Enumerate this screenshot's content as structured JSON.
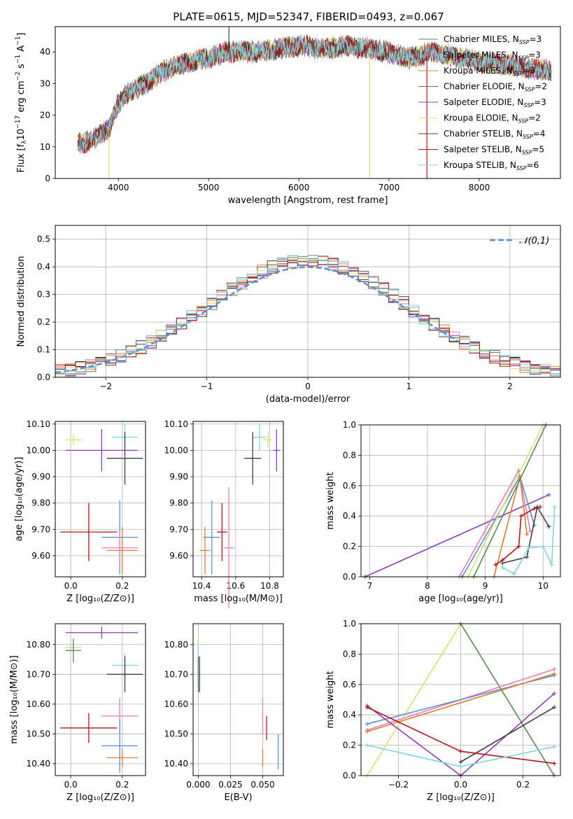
{
  "figure": {
    "title": "PLATE=0615, MJD=52347, FIBERID=0493, z=0.067"
  },
  "legend_spectrum": [
    {
      "label": "Chabrier MILES, N_{SSP}=3",
      "prefix": "Chabrier MILES, N",
      "sub": "SSP",
      "suffix": "=3",
      "color": "#5b8a5b"
    },
    {
      "label": "Salpeter MILES, N_{SSP}=3",
      "prefix": "Salpeter MILES, N",
      "sub": "SSP",
      "suffix": "=3",
      "color": "#e87ab8"
    },
    {
      "label": "Kroupa MILES, N_{SSP}=3",
      "prefix": "Kroupa MILES, N",
      "sub": "SSP",
      "suffix": "=3",
      "color": "#e07b28"
    },
    {
      "label": "Chabrier ELODIE, N_{SSP}=2",
      "prefix": "Chabrier ELODIE, N",
      "sub": "SSP",
      "suffix": "=2",
      "color": "#6a6a6a"
    },
    {
      "label": "Salpeter ELODIE, N_{SSP}=3",
      "prefix": "Salpeter ELODIE, N",
      "sub": "SSP",
      "suffix": "=3",
      "color": "#8e3bb5"
    },
    {
      "label": "Kroupa ELODIE, N_{SSP}=2",
      "prefix": "Kroupa ELODIE, N",
      "sub": "SSP",
      "suffix": "=2",
      "color": "#d8e36a"
    },
    {
      "label": "Chabrier STELIB, N_{SSP}=4",
      "prefix": "Chabrier STELIB, N",
      "sub": "SSP",
      "suffix": "=4",
      "color": "#404040"
    },
    {
      "label": "Salpeter STELIB, N_{SSP}=5",
      "prefix": "Salpeter STELIB, N",
      "sub": "SSP",
      "suffix": "=5",
      "color": "#b5121b"
    },
    {
      "label": "Kroupa STELIB, N_{SSP}=6",
      "prefix": "Kroupa STELIB, N",
      "sub": "SSP",
      "suffix": "=6",
      "color": "#7ed6dc"
    }
  ],
  "legend_residual": {
    "label": "𝒩(0,1)",
    "color": "#5b8fd6"
  },
  "chart_data": [
    {
      "id": "spectrum",
      "type": "line",
      "xlabel": "wavelength [Angstrom, rest frame]",
      "ylabel": "Flux [f_λ 10^{-17} erg cm^{-2} s^{-1} A^{-1}]",
      "xlim": [
        3300,
        8900
      ],
      "ylim": [
        0,
        48
      ],
      "xticks": [
        4000,
        5000,
        6000,
        7000,
        8000
      ],
      "yticks": [
        0,
        10,
        20,
        30,
        40
      ],
      "continuum": {
        "x": [
          3550,
          3700,
          3900,
          4000,
          4100,
          4300,
          4500,
          4800,
          5000,
          5200,
          5500,
          5800,
          6000,
          6300,
          6500,
          6800,
          7000,
          7200,
          7500,
          7800,
          8000,
          8300,
          8500,
          8800
        ],
        "y": [
          11,
          12,
          16,
          24,
          27,
          30,
          34,
          37,
          38,
          40,
          40,
          41,
          42,
          41,
          42,
          41,
          40,
          38,
          40,
          38,
          37,
          36,
          35,
          34
        ]
      },
      "spikes": [
        {
          "x": 5225,
          "y": 48,
          "color": "#404040"
        },
        {
          "x": 6785,
          "y": 0,
          "color": "#d8e36a"
        },
        {
          "x": 7420,
          "y": 0,
          "color": "#b5121b"
        },
        {
          "x": 3895,
          "y": 0,
          "color": "#d8e36a"
        }
      ]
    },
    {
      "id": "residuals",
      "type": "step",
      "xlabel": "(data-model)/error",
      "ylabel": "Normed distribution",
      "xlim": [
        -2.5,
        2.5
      ],
      "ylim": [
        0,
        0.55
      ],
      "xticks": [
        -2,
        -1,
        0,
        1,
        2
      ],
      "xticklabels": [
        "−2",
        "−1",
        "0",
        "1",
        "2"
      ],
      "yticks": [
        0,
        0.1,
        0.2,
        0.3,
        0.4,
        0.5
      ],
      "xticklabel_fmt": "int",
      "bin_width": 0.1,
      "peak": 0.42
    },
    {
      "id": "age-vs-Z",
      "type": "errorbar",
      "xlabel": "Z [log10(Z/Z⊙)]",
      "ylabel": "age [log10(age/yr)]",
      "xlim": [
        -0.06,
        0.29
      ],
      "ylim": [
        9.52,
        10.11
      ],
      "xticks": [
        0.0,
        0.2
      ],
      "xticklabels": [
        "0.0",
        "0.2"
      ],
      "yticks": [
        9.6,
        9.7,
        9.8,
        9.9,
        10.0,
        10.1
      ],
      "points": [
        {
          "x": 0.01,
          "y": 10.04,
          "xerr": 0.03,
          "yerr": 0.02,
          "color": "#d8e36a"
        },
        {
          "x": 0.12,
          "y": 10.0,
          "xerr": 0.14,
          "yerr": 0.08,
          "color": "#8e3bb5"
        },
        {
          "x": 0.21,
          "y": 10.05,
          "xerr": 0.05,
          "yerr": 0.05,
          "color": "#7ed6dc"
        },
        {
          "x": 0.21,
          "y": 9.97,
          "xerr": 0.07,
          "yerr": 0.1,
          "color": "#404040"
        },
        {
          "x": 0.07,
          "y": 9.69,
          "xerr": 0.11,
          "yerr": 0.11,
          "color": "#b5121b"
        },
        {
          "x": 0.19,
          "y": 9.67,
          "xerr": 0.07,
          "yerr": 0.14,
          "color": "#5b8fd6"
        },
        {
          "x": 0.19,
          "y": 9.63,
          "xerr": 0.07,
          "yerr": 0.06,
          "color": "#e87ab8"
        },
        {
          "x": 0.2,
          "y": 9.62,
          "xerr": 0.06,
          "yerr": 0.09,
          "color": "#e07b28"
        }
      ]
    },
    {
      "id": "age-vs-mass",
      "type": "errorbar",
      "xlabel": "mass [log10(M/M⊙)]",
      "ylabel": "",
      "xlim": [
        10.35,
        10.88
      ],
      "ylim": [
        9.52,
        10.11
      ],
      "xticks": [
        10.4,
        10.6,
        10.8
      ],
      "xticklabels": [
        "10.4",
        "10.6",
        "10.8"
      ],
      "yticks": [
        9.6,
        9.7,
        9.8,
        9.9,
        10.0,
        10.1
      ],
      "points": [
        {
          "x": 10.79,
          "y": 10.04,
          "xerr": 0.03,
          "yerr": 0.03,
          "color": "#d8e36a"
        },
        {
          "x": 10.84,
          "y": 10.0,
          "xerr": 0.02,
          "yerr": 0.08,
          "color": "#8e3bb5"
        },
        {
          "x": 10.74,
          "y": 10.05,
          "xerr": 0.04,
          "yerr": 0.05,
          "color": "#7ed6dc"
        },
        {
          "x": 10.7,
          "y": 9.97,
          "xerr": 0.05,
          "yerr": 0.1,
          "color": "#404040"
        },
        {
          "x": 10.52,
          "y": 9.69,
          "xerr": 0.03,
          "yerr": 0.11,
          "color": "#b5121b"
        },
        {
          "x": 10.46,
          "y": 9.67,
          "xerr": 0.05,
          "yerr": 0.14,
          "color": "#5b8fd6"
        },
        {
          "x": 10.56,
          "y": 9.63,
          "xerr": 0.03,
          "yerr": 0.23,
          "color": "#e87ab8"
        },
        {
          "x": 10.42,
          "y": 9.62,
          "xerr": 0.03,
          "yerr": 0.09,
          "color": "#e07b28"
        }
      ]
    },
    {
      "id": "massweight-vs-age",
      "type": "line",
      "xlabel": "age [log10(age/yr)]",
      "ylabel": "mass weight",
      "xlim": [
        6.85,
        10.3
      ],
      "ylim": [
        0,
        1.0
      ],
      "xticks": [
        7,
        8,
        9,
        10
      ],
      "xticklabels": [
        "7",
        "8",
        "9",
        "10"
      ],
      "yticks": [
        0.0,
        0.2,
        0.4,
        0.6,
        0.8,
        1.0
      ],
      "series": [
        {
          "color": "#8e3bb5",
          "x": [
            6.92,
            10.1
          ],
          "y": [
            0.0,
            0.54
          ]
        },
        {
          "color": "#e87ab8",
          "x": [
            8.55,
            9.58,
            9.78
          ],
          "y": [
            0.0,
            0.7,
            0.3
          ]
        },
        {
          "color": "#5b8fd6",
          "x": [
            8.6,
            9.6,
            9.85
          ],
          "y": [
            0.0,
            0.66,
            0.34
          ]
        },
        {
          "color": "#e07b28",
          "x": [
            9.15,
            9.6,
            9.72
          ],
          "y": [
            0.0,
            0.66,
            0.28
          ]
        },
        {
          "color": "#d8e36a",
          "x": [
            8.7,
            10.0
          ],
          "y": [
            0.0,
            1.0
          ]
        },
        {
          "color": "#5b8a5b",
          "x": [
            8.8,
            10.05
          ],
          "y": [
            0.0,
            1.0
          ]
        },
        {
          "color": "#b5121b",
          "x": [
            9.18,
            9.3,
            9.58,
            9.62,
            9.85,
            9.95
          ],
          "y": [
            0.08,
            0.11,
            0.2,
            0.4,
            0.45,
            0.46
          ]
        },
        {
          "color": "#404040",
          "x": [
            9.3,
            9.72,
            9.9,
            10.1
          ],
          "y": [
            0.09,
            0.13,
            0.46,
            0.33
          ]
        },
        {
          "color": "#7ed6dc",
          "x": [
            9.3,
            9.5,
            9.75,
            10.0,
            10.15,
            10.2
          ],
          "y": [
            0.06,
            0.02,
            0.19,
            0.2,
            0.08,
            0.46
          ]
        }
      ]
    },
    {
      "id": "mass-vs-Z",
      "type": "errorbar",
      "xlabel": "Z [log10(Z/Z⊙)]",
      "ylabel": "mass [log10(M/M⊙)]",
      "xlim": [
        -0.06,
        0.29
      ],
      "ylim": [
        10.36,
        10.87
      ],
      "xticks": [
        0.0,
        0.2
      ],
      "xticklabels": [
        "0.0",
        "0.2"
      ],
      "yticks": [
        10.4,
        10.5,
        10.6,
        10.7,
        10.8
      ],
      "points": [
        {
          "x": 0.12,
          "y": 10.84,
          "xerr": 0.14,
          "yerr": 0.02,
          "color": "#8e3bb5"
        },
        {
          "x": 0.01,
          "y": 10.79,
          "xerr": 0.03,
          "yerr": 0.03,
          "color": "#d8e36a"
        },
        {
          "x": 0.01,
          "y": 10.78,
          "xerr": 0.03,
          "yerr": 0.04,
          "color": "#5b8a5b"
        },
        {
          "x": 0.21,
          "y": 10.73,
          "xerr": 0.05,
          "yerr": 0.04,
          "color": "#7ed6dc"
        },
        {
          "x": 0.21,
          "y": 10.7,
          "xerr": 0.07,
          "yerr": 0.06,
          "color": "#404040"
        },
        {
          "x": 0.19,
          "y": 10.56,
          "xerr": 0.07,
          "yerr": 0.06,
          "color": "#e87ab8"
        },
        {
          "x": 0.07,
          "y": 10.52,
          "xerr": 0.11,
          "yerr": 0.05,
          "color": "#b5121b"
        },
        {
          "x": 0.19,
          "y": 10.46,
          "xerr": 0.07,
          "yerr": 0.09,
          "color": "#5b8fd6"
        },
        {
          "x": 0.2,
          "y": 10.42,
          "xerr": 0.06,
          "yerr": 0.03,
          "color": "#e07b28"
        }
      ]
    },
    {
      "id": "mass-vs-ebv",
      "type": "errorbar",
      "xlabel": "E(B-V)",
      "ylabel": "",
      "xlim": [
        -0.004,
        0.066
      ],
      "ylim": [
        10.36,
        10.87
      ],
      "xticks": [
        0.0,
        0.025,
        0.05
      ],
      "xticklabels": [
        "0.000",
        "0.025",
        "0.050"
      ],
      "yticks": [
        10.4,
        10.5,
        10.6,
        10.7,
        10.8
      ],
      "points": [
        {
          "x": 0.0,
          "y": 10.78,
          "xerr": 0.0,
          "yerr": 0.05,
          "color": "#d8e36a"
        },
        {
          "x": 0.0,
          "y": 10.73,
          "xerr": 0.0,
          "yerr": 0.07,
          "color": "#7ed6dc"
        },
        {
          "x": 0.0,
          "y": 10.7,
          "xerr": 0.0,
          "yerr": 0.06,
          "color": "#5b8a5b"
        },
        {
          "x": 0.001,
          "y": 10.7,
          "xerr": 0.0,
          "yerr": 0.06,
          "color": "#404040"
        },
        {
          "x": 0.05,
          "y": 10.56,
          "xerr": 0.0,
          "yerr": 0.06,
          "color": "#e87ab8"
        },
        {
          "x": 0.053,
          "y": 10.52,
          "xerr": 0.0,
          "yerr": 0.04,
          "color": "#b5121b"
        },
        {
          "x": 0.05,
          "y": 10.42,
          "xerr": 0.0,
          "yerr": 0.03,
          "color": "#e07b28"
        },
        {
          "x": 0.062,
          "y": 10.44,
          "xerr": 0.0,
          "yerr": 0.06,
          "color": "#5b8fd6"
        }
      ]
    },
    {
      "id": "massweight-vs-Z",
      "type": "line",
      "xlabel": "Z [log10(Z/Z⊙)]",
      "ylabel": "mass weight",
      "xlim": [
        -0.32,
        0.32
      ],
      "ylim": [
        0,
        1.0
      ],
      "xticks": [
        -0.2,
        0.0,
        0.2
      ],
      "xticklabels": [
        "−0.2",
        "0.0",
        "0.2"
      ],
      "yticks": [
        0.0,
        0.2,
        0.4,
        0.6,
        0.8,
        1.0
      ],
      "series": [
        {
          "color": "#d8e36a",
          "x": [
            -0.3,
            0.0,
            0.3
          ],
          "y": [
            0.0,
            1.0,
            0.0
          ]
        },
        {
          "color": "#5b8a5b",
          "x": [
            0.0,
            0.3
          ],
          "y": [
            1.0,
            0.0
          ]
        },
        {
          "color": "#e87ab8",
          "x": [
            -0.3,
            0.3
          ],
          "y": [
            0.3,
            0.7
          ]
        },
        {
          "color": "#5b8fd6",
          "x": [
            -0.3,
            0.3
          ],
          "y": [
            0.34,
            0.66
          ]
        },
        {
          "color": "#e07b28",
          "x": [
            -0.3,
            0.3
          ],
          "y": [
            0.29,
            0.67
          ]
        },
        {
          "color": "#8e3bb5",
          "x": [
            -0.3,
            0.0,
            0.3
          ],
          "y": [
            0.46,
            0.0,
            0.54
          ]
        },
        {
          "color": "#404040",
          "x": [
            0.0,
            0.3
          ],
          "y": [
            0.09,
            0.45
          ]
        },
        {
          "color": "#b5121b",
          "x": [
            -0.3,
            0.0,
            0.3
          ],
          "y": [
            0.45,
            0.16,
            0.08
          ]
        },
        {
          "color": "#7ed6dc",
          "x": [
            -0.3,
            0.0,
            0.3
          ],
          "y": [
            0.2,
            0.06,
            0.19
          ]
        }
      ]
    }
  ]
}
